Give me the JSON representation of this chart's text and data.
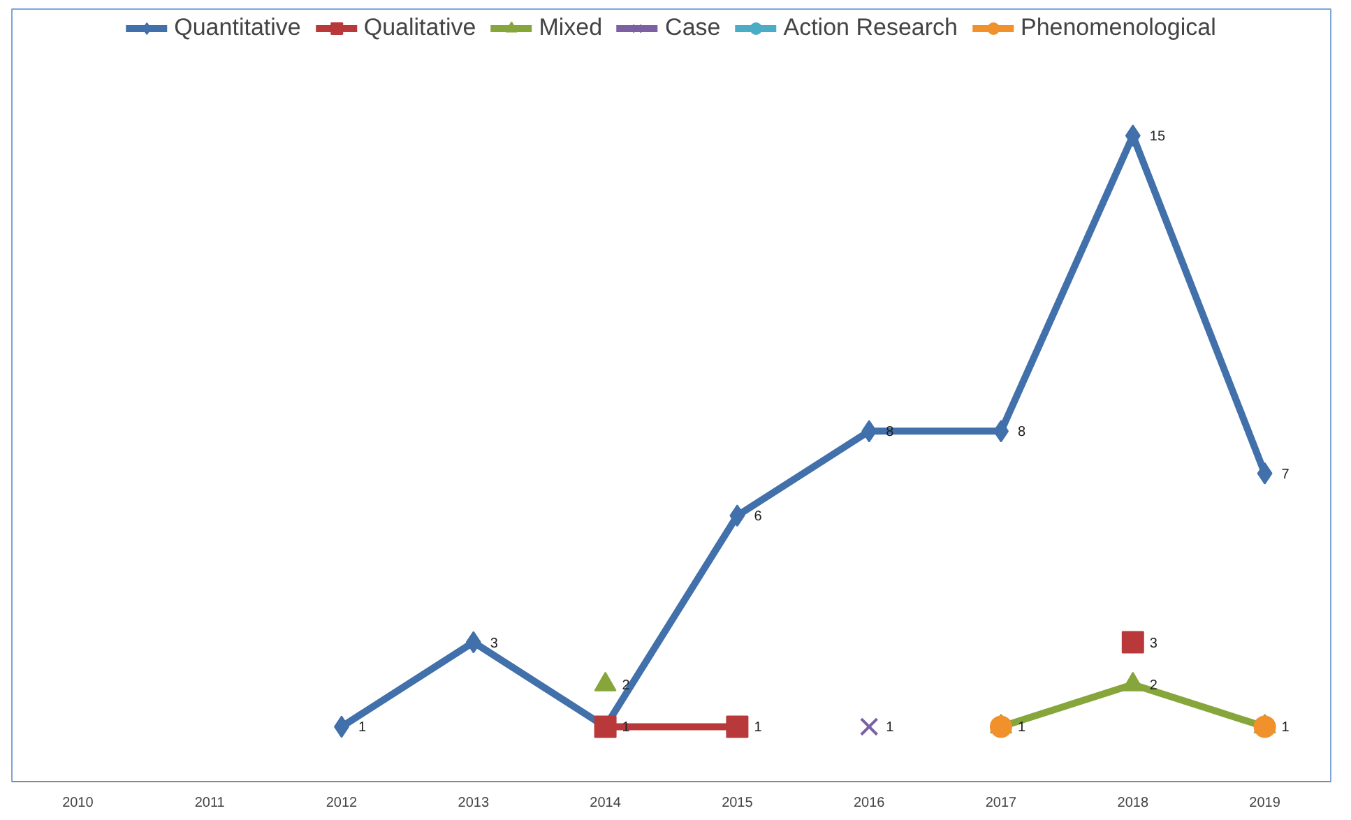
{
  "chart_data": {
    "type": "line",
    "categories": [
      "2010",
      "2011",
      "2012",
      "2013",
      "2014",
      "2015",
      "2016",
      "2017",
      "2018",
      "2019"
    ],
    "series": [
      {
        "name": "Quantitative",
        "color": "#4170ab",
        "marker": "diamond",
        "values": [
          null,
          null,
          1,
          3,
          1,
          6,
          8,
          8,
          15,
          7
        ],
        "value_labels": [
          null,
          null,
          "1",
          "3",
          null,
          "6",
          "8",
          "8",
          "15",
          "7"
        ]
      },
      {
        "name": "Qualitative",
        "color": "#b9393a",
        "marker": "square",
        "values": [
          null,
          null,
          null,
          null,
          1,
          1,
          null,
          null,
          3,
          null
        ],
        "value_labels": [
          null,
          null,
          null,
          null,
          "1",
          "1",
          null,
          null,
          "3",
          null
        ]
      },
      {
        "name": "Mixed",
        "color": "#86a63c",
        "marker": "triangle",
        "values": [
          null,
          null,
          null,
          null,
          2,
          null,
          null,
          1,
          2,
          1
        ],
        "value_labels": [
          null,
          null,
          null,
          null,
          "2",
          null,
          null,
          null,
          "2",
          null
        ]
      },
      {
        "name": "Case",
        "type": "scatter",
        "color": "#7b60a2",
        "marker": "cross",
        "values": [
          null,
          null,
          null,
          null,
          null,
          null,
          1,
          null,
          null,
          null
        ],
        "value_labels": [
          null,
          null,
          null,
          null,
          null,
          null,
          "1",
          null,
          null,
          null
        ]
      },
      {
        "name": "Action Research",
        "color": "#4bacc6",
        "marker": "circle",
        "values": [
          null,
          null,
          null,
          null,
          null,
          null,
          null,
          null,
          null,
          null
        ]
      },
      {
        "name": "Phenomenological",
        "type": "scatter",
        "color": "#f0912c",
        "marker": "circle",
        "values": [
          null,
          null,
          null,
          null,
          null,
          null,
          null,
          1,
          null,
          1
        ],
        "value_labels": [
          null,
          null,
          null,
          null,
          null,
          null,
          null,
          "1",
          null,
          "1"
        ]
      }
    ],
    "legend": "top",
    "grid": false
  }
}
